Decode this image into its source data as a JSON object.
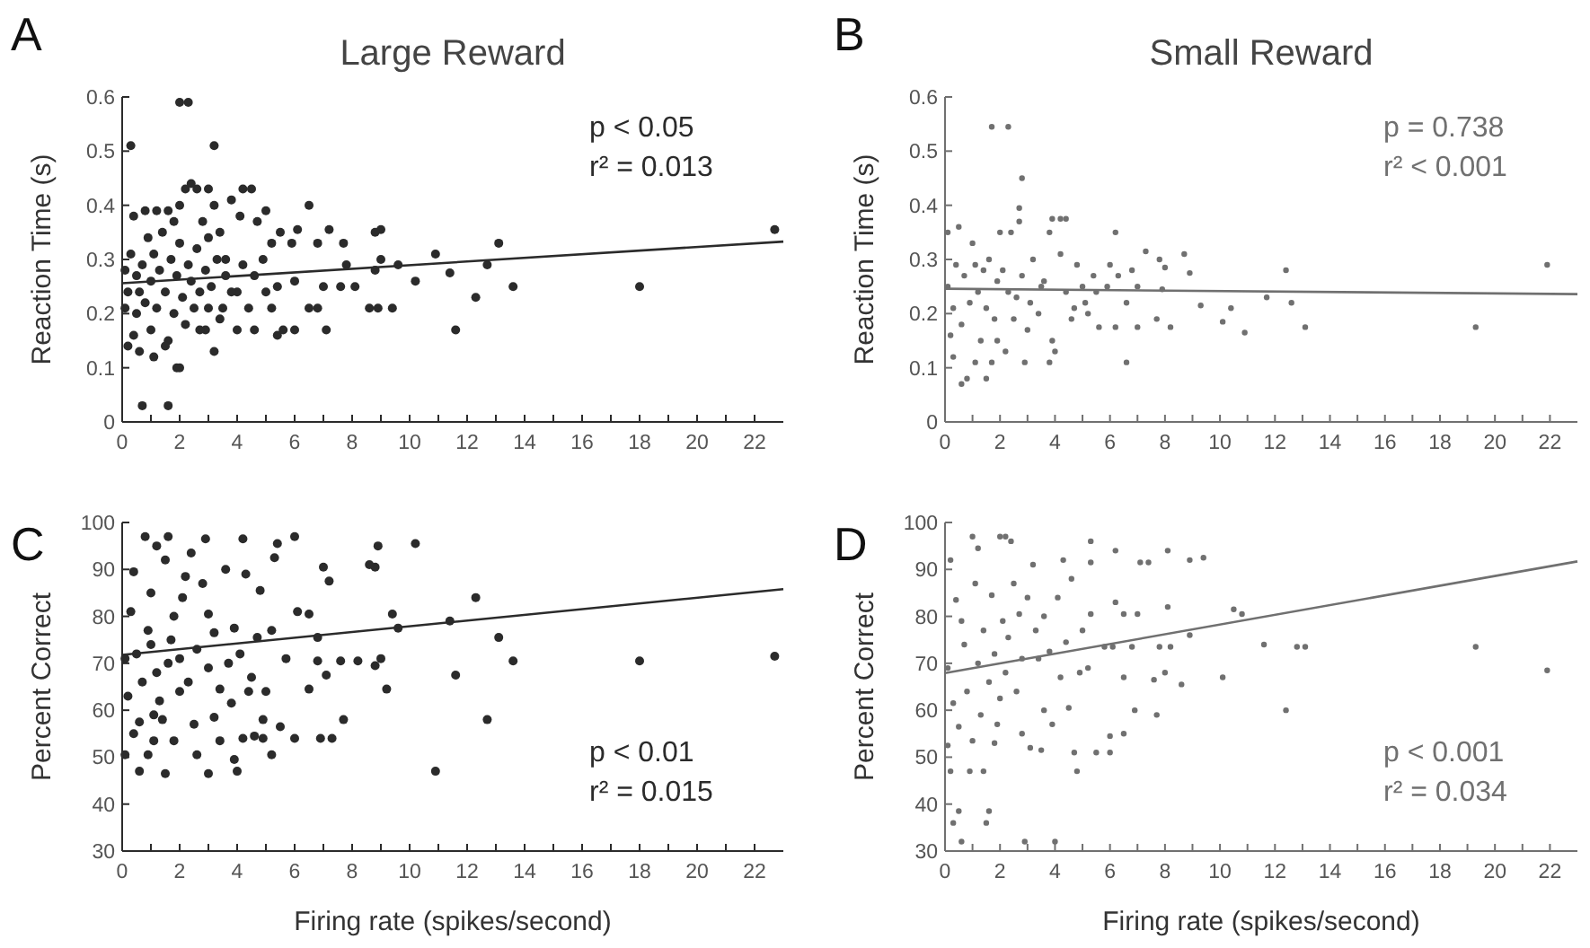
{
  "chart_data": [
    {
      "type": "scatter",
      "title": "Large Reward",
      "ylabel": "Reaction Time (s)",
      "xlim": [
        0,
        23
      ],
      "ylim": [
        0,
        0.6
      ],
      "yticks": [
        0,
        0.1,
        0.2,
        0.3,
        0.4,
        0.5,
        0.6
      ],
      "annotations": [
        "A",
        "p < 0.05",
        "r² = 0.013"
      ],
      "xticks": [
        0,
        {
          "value": 1,
          "label": null
        },
        2,
        {
          "value": 3,
          "label": null
        },
        4,
        {
          "value": 5,
          "label": null
        },
        6,
        {
          "value": 7,
          "label": null
        },
        8,
        {
          "value": 9,
          "label": null
        },
        10,
        {
          "value": 11,
          "label": null
        },
        12,
        {
          "value": 13,
          "label": null
        },
        14,
        {
          "value": 15,
          "label": null
        },
        16,
        {
          "value": 17,
          "label": null
        },
        18,
        {
          "value": 19,
          "label": null
        },
        20,
        {
          "value": 21,
          "label": null
        },
        22
      ],
      "series": [
        {
          "marker": "circle",
          "color": "#2b2b2b",
          "x": [
            0.3,
            2.0,
            2.3,
            3.2,
            0.7,
            1.6,
            1.9,
            2.0,
            3.2,
            0.2,
            0.6,
            22.7,
            18,
            13.6,
            13.1,
            12.7,
            12.3,
            11.6,
            11.4,
            10.9,
            10.2,
            9.6,
            9.4,
            9.0,
            9.0,
            8.9,
            8.8,
            8.8,
            8.6,
            8.1,
            7.8,
            7.7,
            7.6,
            7.2,
            7.1,
            7.0,
            6.8,
            6.8,
            6.5,
            6.5,
            6.1,
            6.0,
            6.0,
            5.9,
            5.6,
            5.5,
            5.4,
            5.4,
            5.2,
            5.0,
            5.0,
            4.9,
            4.7,
            4.6,
            4.5,
            4.2,
            4.0,
            4.1,
            4.0,
            3.8,
            3.6,
            3.5,
            3.4,
            3.2,
            3.0,
            2.9,
            2.6,
            2.4,
            2.2,
            2.0,
            1.8,
            1.6,
            1.2,
            0.8,
            0.4,
            0.2,
            0.3,
            0.5,
            0.5,
            0.7,
            0.8,
            0.9,
            1.0,
            1.0,
            1.1,
            1.2,
            1.3,
            1.4,
            1.5,
            1.6,
            1.7,
            1.8,
            1.9,
            2.0,
            2.1,
            2.2,
            2.3,
            2.4,
            2.5,
            2.6,
            2.7,
            2.8,
            2.9,
            3.0,
            3.1,
            3.3,
            3.4,
            3.6,
            3.8,
            4.2,
            4.4,
            4.6,
            5.2,
            0.1,
            0.1,
            0.6,
            1.1,
            1.5,
            2.7,
            3.0,
            0.4
          ],
          "values": [
            0.51,
            0.59,
            0.59,
            0.51,
            0.03,
            0.03,
            0.1,
            0.1,
            0.13,
            0.14,
            0.13,
            0.355,
            0.25,
            0.25,
            0.33,
            0.29,
            0.23,
            0.17,
            0.275,
            0.31,
            0.26,
            0.29,
            0.21,
            0.355,
            0.3,
            0.21,
            0.35,
            0.28,
            0.21,
            0.25,
            0.29,
            0.33,
            0.25,
            0.355,
            0.17,
            0.25,
            0.21,
            0.33,
            0.21,
            0.4,
            0.355,
            0.17,
            0.26,
            0.33,
            0.17,
            0.35,
            0.25,
            0.16,
            0.33,
            0.39,
            0.24,
            0.3,
            0.37,
            0.17,
            0.43,
            0.43,
            0.24,
            0.38,
            0.17,
            0.41,
            0.3,
            0.21,
            0.35,
            0.4,
            0.43,
            0.17,
            0.43,
            0.44,
            0.43,
            0.4,
            0.37,
            0.39,
            0.39,
            0.39,
            0.38,
            0.24,
            0.31,
            0.27,
            0.2,
            0.29,
            0.22,
            0.34,
            0.26,
            0.17,
            0.31,
            0.21,
            0.28,
            0.35,
            0.24,
            0.15,
            0.3,
            0.2,
            0.27,
            0.33,
            0.23,
            0.18,
            0.29,
            0.26,
            0.21,
            0.32,
            0.24,
            0.37,
            0.28,
            0.21,
            0.25,
            0.3,
            0.19,
            0.27,
            0.24,
            0.29,
            0.21,
            0.27,
            0.21,
            0.21,
            0.28,
            0.24,
            0.12,
            0.14,
            0.17,
            0.34,
            0.16
          ]
        },
        {
          "type": "line",
          "color": "#2b2b2b",
          "x": [
            0,
            23
          ],
          "values": [
            0.256,
            0.333
          ]
        }
      ]
    },
    {
      "type": "scatter",
      "title": "Small Reward",
      "ylabel": "Reaction Time (s)",
      "xlim": [
        0,
        23
      ],
      "ylim": [
        0,
        0.6
      ],
      "yticks": [
        0,
        0.1,
        0.2,
        0.3,
        0.4,
        0.5,
        0.6
      ],
      "annotations": [
        "B",
        "p = 0.738",
        "r² < 0.001"
      ],
      "xticks": [
        0,
        {
          "value": 1,
          "label": null
        },
        2,
        {
          "value": 3,
          "label": null
        },
        4,
        {
          "value": 5,
          "label": null
        },
        6,
        {
          "value": 7,
          "label": null
        },
        8,
        {
          "value": 9,
          "label": null
        },
        10,
        {
          "value": 11,
          "label": null
        },
        12,
        {
          "value": 13,
          "label": null
        },
        14,
        {
          "value": 15,
          "label": null
        },
        16,
        {
          "value": 17,
          "label": null
        },
        18,
        {
          "value": 19,
          "label": null
        },
        20,
        {
          "value": 21,
          "label": null
        },
        22
      ],
      "series": [
        {
          "marker": "circle",
          "color": "#707070",
          "x": [
            1.7,
            2.3,
            2.8,
            2.7,
            3.9,
            4.2,
            4.4,
            6.2,
            21.9,
            19.3,
            13.1,
            12.6,
            12.4,
            11.7,
            10.9,
            10.4,
            10.1,
            9.3,
            8.7,
            8.9,
            8.2,
            8.0,
            7.8,
            7.9,
            7.7,
            7.3,
            7.0,
            7.0,
            6.8,
            6.6,
            6.6,
            6.3,
            6.2,
            6.0,
            5.9,
            5.6,
            5.5,
            5.4,
            5.2,
            5.0,
            4.8,
            4.6,
            4.4,
            4.2,
            4.0,
            3.9,
            3.8,
            3.8,
            3.6,
            3.4,
            3.2,
            3.0,
            2.9,
            2.7,
            2.6,
            2.4,
            2.2,
            2.0,
            1.9,
            1.8,
            1.7,
            1.5,
            1.4,
            1.3,
            1.1,
            1.0,
            0.9,
            0.8,
            0.6,
            0.5,
            0.4,
            0.3,
            0.2,
            0.1,
            0.1,
            0.7,
            0.6,
            1.2,
            1.6,
            1.5,
            2.1,
            2.3,
            2.5,
            2.8,
            3.1,
            3.5,
            1.1,
            0.3,
            1.9,
            4.7,
            5.1
          ],
          "values": [
            0.545,
            0.545,
            0.45,
            0.395,
            0.375,
            0.375,
            0.375,
            0.35,
            0.29,
            0.175,
            0.175,
            0.22,
            0.28,
            0.23,
            0.165,
            0.21,
            0.185,
            0.215,
            0.31,
            0.275,
            0.175,
            0.285,
            0.3,
            0.245,
            0.19,
            0.315,
            0.25,
            0.175,
            0.28,
            0.11,
            0.22,
            0.27,
            0.175,
            0.29,
            0.25,
            0.175,
            0.24,
            0.27,
            0.2,
            0.25,
            0.29,
            0.19,
            0.24,
            0.31,
            0.13,
            0.15,
            0.35,
            0.11,
            0.26,
            0.2,
            0.3,
            0.17,
            0.11,
            0.37,
            0.23,
            0.35,
            0.13,
            0.35,
            0.26,
            0.19,
            0.11,
            0.08,
            0.28,
            0.15,
            0.11,
            0.33,
            0.22,
            0.08,
            0.07,
            0.36,
            0.29,
            0.21,
            0.16,
            0.25,
            0.35,
            0.27,
            0.18,
            0.24,
            0.3,
            0.21,
            0.28,
            0.24,
            0.19,
            0.27,
            0.22,
            0.25,
            0.29,
            0.12,
            0.15,
            0.21,
            0.22
          ]
        },
        {
          "type": "line",
          "color": "#707070",
          "x": [
            0,
            23
          ],
          "values": [
            0.246,
            0.236
          ]
        }
      ]
    },
    {
      "type": "scatter",
      "ylabel": "Percent Correct",
      "xlabel": "Firing rate (spikes/second)",
      "xlim": [
        0,
        23
      ],
      "ylim": [
        30,
        100
      ],
      "yticks": [
        30,
        40,
        50,
        60,
        70,
        80,
        90,
        100
      ],
      "annotations": [
        "C",
        "p < 0.01",
        "r² = 0.015"
      ],
      "xticks": [
        0,
        {
          "value": 1,
          "label": null
        },
        2,
        {
          "value": 3,
          "label": null
        },
        4,
        {
          "value": 5,
          "label": null
        },
        6,
        {
          "value": 7,
          "label": null
        },
        8,
        {
          "value": 9,
          "label": null
        },
        10,
        {
          "value": 11,
          "label": null
        },
        12,
        {
          "value": 13,
          "label": null
        },
        14,
        {
          "value": 15,
          "label": null
        },
        16,
        {
          "value": 17,
          "label": null
        },
        18,
        {
          "value": 19,
          "label": null
        },
        20,
        {
          "value": 21,
          "label": null
        },
        22
      ],
      "series": [
        {
          "marker": "circle",
          "color": "#2b2b2b",
          "x": [
            22.7,
            18,
            13.6,
            13.1,
            12.7,
            12.3,
            11.6,
            11.4,
            10.9,
            10.2,
            9.6,
            9.4,
            9.2,
            9.0,
            8.9,
            8.8,
            8.8,
            8.6,
            8.2,
            7.7,
            7.6,
            7.3,
            7.2,
            7.1,
            7.0,
            6.9,
            6.8,
            6.8,
            6.5,
            6.5,
            6.1,
            6.0,
            6.0,
            5.7,
            5.5,
            5.4,
            5.3,
            5.2,
            5.2,
            5.0,
            4.9,
            4.9,
            4.8,
            4.6,
            4.4,
            4.2,
            4.2,
            4.0,
            3.9,
            3.8,
            3.6,
            3.4,
            3.2,
            3.0,
            3.0,
            2.9,
            2.6,
            2.4,
            2.2,
            2.0,
            1.8,
            1.6,
            1.6,
            1.5,
            1.4,
            1.2,
            1.1,
            1.0,
            0.9,
            0.8,
            0.6,
            0.5,
            0.4,
            0.3,
            0.2,
            0.1,
            0.1,
            0.6,
            0.7,
            0.9,
            1.0,
            1.2,
            1.3,
            1.5,
            1.7,
            1.8,
            2.0,
            2.1,
            2.3,
            2.5,
            2.6,
            2.8,
            3.0,
            3.2,
            3.4,
            3.7,
            3.9,
            4.1,
            4.3,
            4.5,
            4.7,
            1.1,
            0.4
          ],
          "values": [
            71.5,
            70.5,
            70.5,
            75.5,
            58,
            84,
            67.5,
            79,
            47,
            95.5,
            77.5,
            80.5,
            64.5,
            71,
            95,
            90.5,
            69.5,
            91,
            70.5,
            58,
            70.5,
            54,
            87.5,
            67.5,
            90.5,
            54,
            75.5,
            70.5,
            64.5,
            80.5,
            81,
            54,
            97,
            71,
            56.5,
            95.5,
            92.5,
            50.5,
            77,
            64,
            54,
            58,
            85.5,
            54.5,
            64,
            96.5,
            54,
            47,
            49.5,
            61.5,
            90,
            53.5,
            58.5,
            46.5,
            80.5,
            96.5,
            50.5,
            93.5,
            88.5,
            64,
            80,
            97,
            70,
            46.5,
            58,
            95,
            53.5,
            85,
            77,
            97,
            47,
            72,
            89.5,
            81,
            63,
            50.5,
            71,
            57.5,
            66,
            50.5,
            74,
            68,
            62,
            92,
            75,
            53.5,
            71,
            84,
            66,
            57,
            73,
            87,
            69,
            76.5,
            64.5,
            70,
            77.5,
            72,
            89,
            67,
            75.5,
            59,
            55
          ]
        },
        {
          "type": "line",
          "color": "#2b2b2b",
          "x": [
            0,
            23
          ],
          "values": [
            71.8,
            85.8
          ]
        }
      ]
    },
    {
      "type": "scatter",
      "ylabel": "Percent Correct",
      "xlabel": "Firing rate (spikes/second)",
      "xlim": [
        0,
        23
      ],
      "ylim": [
        30,
        100
      ],
      "yticks": [
        30,
        40,
        50,
        60,
        70,
        80,
        90,
        100
      ],
      "annotations": [
        "D",
        "p < 0.001",
        "r² = 0.034"
      ],
      "xticks": [
        0,
        {
          "value": 1,
          "label": null
        },
        2,
        {
          "value": 3,
          "label": null
        },
        4,
        {
          "value": 5,
          "label": null
        },
        6,
        {
          "value": 7,
          "label": null
        },
        8,
        {
          "value": 9,
          "label": null
        },
        10,
        {
          "value": 11,
          "label": null
        },
        12,
        {
          "value": 13,
          "label": null
        },
        14,
        {
          "value": 15,
          "label": null
        },
        16,
        {
          "value": 17,
          "label": null
        },
        18,
        {
          "value": 19,
          "label": null
        },
        20,
        {
          "value": 21,
          "label": null
        },
        22
      ],
      "series": [
        {
          "marker": "circle",
          "color": "#707070",
          "x": [
            21.9,
            19.3,
            13.1,
            12.8,
            12.4,
            11.6,
            10.8,
            10.5,
            10.1,
            9.4,
            8.9,
            8.9,
            8.6,
            8.2,
            8.1,
            8.1,
            8.0,
            7.8,
            7.7,
            7.6,
            7.4,
            7.1,
            7.0,
            6.9,
            6.8,
            6.5,
            6.5,
            6.5,
            6.2,
            6.2,
            6.1,
            6.0,
            6.0,
            5.8,
            5.5,
            5.3,
            5.3,
            5.3,
            5.2,
            5.0,
            4.9,
            4.8,
            4.7,
            4.6,
            4.5,
            4.3,
            4.0,
            3.9,
            3.6,
            3.5,
            3.3,
            3.1,
            2.9,
            2.8,
            2.7,
            2.4,
            2.2,
            2.0,
            1.8,
            1.6,
            1.5,
            1.4,
            1.2,
            1.0,
            0.9,
            0.6,
            0.5,
            0.3,
            0.2,
            0.2,
            0.4,
            0.1,
            0.1,
            0.3,
            0.5,
            0.7,
            0.8,
            1.0,
            1.1,
            1.2,
            1.3,
            1.4,
            1.6,
            1.7,
            1.8,
            2.0,
            2.1,
            2.2,
            2.3,
            2.5,
            2.6,
            2.8,
            3.0,
            3.2,
            3.4,
            3.6,
            3.8,
            4.1,
            4.2,
            4.4,
            0.6,
            1.9
          ],
          "values": [
            68.5,
            73.5,
            73.5,
            73.5,
            60,
            74,
            80.5,
            81.5,
            67,
            92.5,
            92,
            76,
            65.5,
            73.5,
            94,
            82,
            68,
            73.5,
            59,
            66.5,
            91.5,
            91.5,
            80.5,
            60,
            73.5,
            80.5,
            67,
            55,
            94,
            83,
            73.5,
            54.5,
            51,
            73.5,
            51,
            96,
            91.5,
            80.5,
            69,
            77,
            68,
            47,
            51,
            88,
            60.5,
            92,
            32,
            57,
            60,
            51.5,
            77,
            52,
            32,
            55,
            80.5,
            96,
            97,
            97,
            53,
            38.5,
            36,
            47,
            94.5,
            97,
            47,
            32,
            38.5,
            36,
            47,
            92,
            83.5,
            69,
            52.5,
            61.5,
            56.5,
            74,
            64,
            53.5,
            87,
            70,
            59,
            77,
            66,
            84.5,
            72,
            62.5,
            79,
            68,
            75.5,
            87,
            64,
            71,
            84,
            91,
            71,
            80,
            72.5,
            84,
            67,
            74.5,
            79,
            57
          ]
        },
        {
          "type": "line",
          "color": "#707070",
          "x": [
            0,
            23
          ],
          "values": [
            67.9,
            91.7
          ]
        }
      ]
    }
  ]
}
